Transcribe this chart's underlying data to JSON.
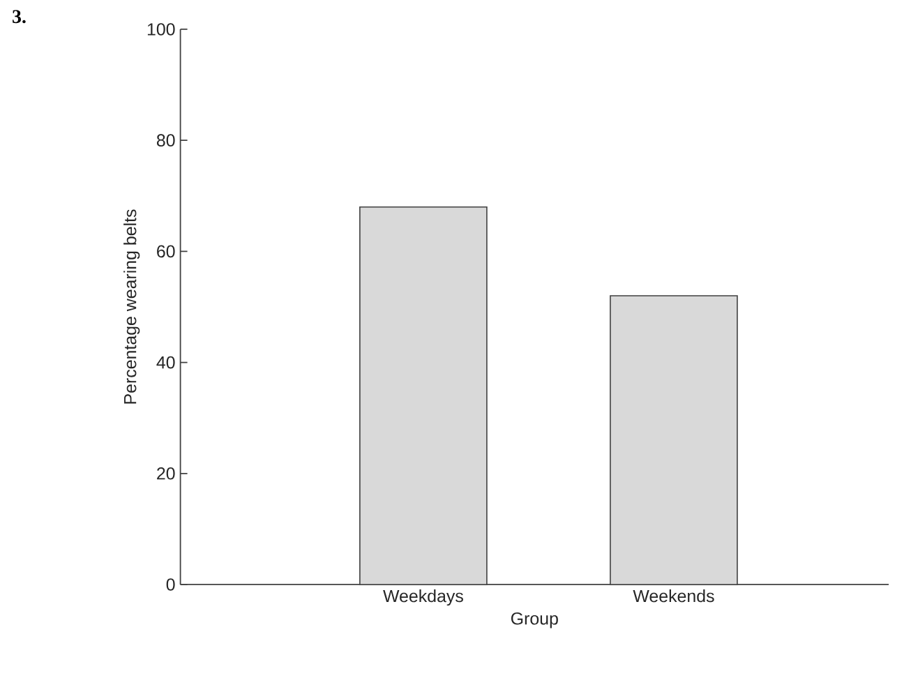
{
  "chart_data": {
    "type": "bar",
    "annotations": [
      "3."
    ],
    "xlabel": "Group",
    "ylabel": "Percentage wearing belts",
    "categories": [
      "Weekdays",
      "Weekends"
    ],
    "values": [
      68,
      52
    ],
    "color": "#d9d9d9",
    "ylim": [
      0,
      100
    ],
    "yticks": [
      0,
      20,
      40,
      60,
      80,
      100
    ]
  }
}
